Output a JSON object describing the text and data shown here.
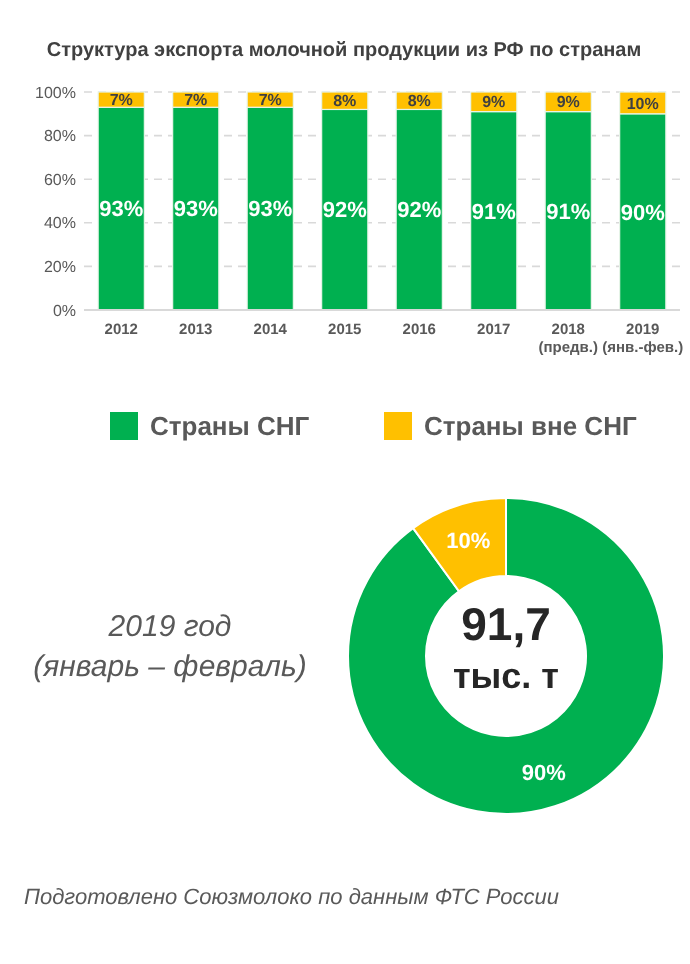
{
  "chart_data": [
    {
      "type": "bar",
      "title": "Структура экспорта молочной продукции из РФ по странам",
      "categories": [
        "2012",
        "2013",
        "2014",
        "2015",
        "2016",
        "2017",
        "2018\n(предв.)",
        "2019\n(янв.-фев.)"
      ],
      "stacked": true,
      "series": [
        {
          "color": "#00b050",
          "values": [
            93,
            93,
            93,
            92,
            92,
            91,
            91,
            90
          ],
          "value_labels": [
            "93%",
            "93%",
            "93%",
            "92%",
            "92%",
            "91%",
            "91%",
            "90%"
          ]
        },
        {
          "color": "#ffc000",
          "values": [
            7,
            7,
            7,
            8,
            8,
            9,
            9,
            10
          ],
          "value_labels": [
            "7%",
            "7%",
            "7%",
            "8%",
            "8%",
            "9%",
            "9%",
            "10%"
          ]
        }
      ],
      "ylim": [
        0,
        100
      ],
      "yticks": [
        {
          "value": 0,
          "label": "0%"
        },
        {
          "value": 20,
          "label": "20%"
        },
        {
          "value": 40,
          "label": "40%"
        },
        {
          "value": 60,
          "label": "60%"
        },
        {
          "value": 80,
          "label": "80%"
        },
        {
          "value": 100,
          "label": "100%"
        }
      ],
      "grid": "y"
    },
    {
      "type": "donut",
      "subtitle": "2019 год\n(январь – февраль)",
      "categories": [
        "Страны СНГ",
        "Страны вне СНГ"
      ],
      "legend": "top",
      "values": [
        90,
        10
      ],
      "colors": [
        "#00b050",
        "#ffc000"
      ],
      "value_labels": [
        "90%",
        "10%"
      ],
      "annotations": [
        "91,7\nтыс. т",
        "Подготовлено Союзмолоко по данным ФТС России"
      ]
    }
  ]
}
